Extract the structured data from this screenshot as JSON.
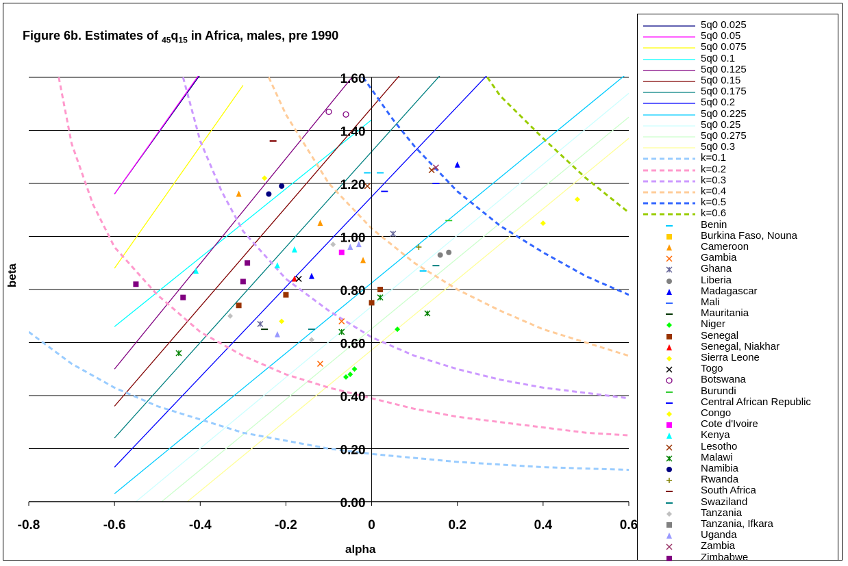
{
  "chart_data": {
    "type": "scatter",
    "title": "Figure 6b. Estimates of",
    "title_symbol": "q",
    "title_pre_sub": "45",
    "title_sub": "15",
    "title_rest": " in Africa, males, pre 1990",
    "xlabel": "alpha",
    "ylabel": "beta",
    "xlim": [
      -0.8,
      0.6
    ],
    "ylim": [
      0.0,
      1.6
    ],
    "xticks": [
      "-0.8",
      "-0.6",
      "-0.4",
      "-0.2",
      "0",
      "0.2",
      "0.4",
      "0.6"
    ],
    "yticks": [
      "0.00",
      "0.20",
      "0.40",
      "0.60",
      "0.80",
      "1.00",
      "1.20",
      "1.40",
      "1.60"
    ],
    "grid": "horizontal",
    "legend_position": "right",
    "iso_5q0_lines": [
      {
        "name": "5q0 0.025",
        "color": "#000080",
        "p1": [
          -0.6,
          1.16
        ],
        "p2": [
          -0.4,
          1.61
        ]
      },
      {
        "name": "5q0 0.05",
        "color": "#ff00ff",
        "p1": [
          -0.6,
          1.16
        ],
        "p2": [
          -0.35,
          1.73
        ]
      },
      {
        "name": "5q0 0.075",
        "color": "#ffff00",
        "p1": [
          -0.6,
          0.88
        ],
        "p2": [
          -0.3,
          1.57
        ]
      },
      {
        "name": "5q0 0.1",
        "color": "#00ffff",
        "p1": [
          -0.6,
          0.66
        ],
        "p2": [
          0.0,
          1.44
        ]
      },
      {
        "name": "5q0 0.125",
        "color": "#800080",
        "p1": [
          -0.6,
          0.5
        ],
        "p2": [
          0.06,
          1.81
        ]
      },
      {
        "name": "5q0 0.15",
        "color": "#800000",
        "p1": [
          -0.6,
          0.36
        ],
        "p2": [
          0.2,
          1.86
        ]
      },
      {
        "name": "5q0 0.175",
        "color": "#008080",
        "p1": [
          -0.6,
          0.24
        ],
        "p2": [
          0.35,
          1.95
        ]
      },
      {
        "name": "5q0 0.2",
        "color": "#0000ff",
        "p1": [
          -0.6,
          0.13
        ],
        "p2": [
          0.5,
          2.0
        ]
      },
      {
        "name": "5q0 0.225",
        "color": "#00ccff",
        "p1": [
          -0.6,
          0.03
        ],
        "p2": [
          0.6,
          1.62
        ]
      },
      {
        "name": "5q0 0.25",
        "color": "#ccffff",
        "p1": [
          -0.55,
          0.0
        ],
        "p2": [
          0.6,
          1.54
        ]
      },
      {
        "name": "5q0 0.275",
        "color": "#ccffcc",
        "p1": [
          -0.49,
          0.0
        ],
        "p2": [
          0.6,
          1.45
        ]
      },
      {
        "name": "5q0 0.3",
        "color": "#ffff99",
        "p1": [
          -0.43,
          0.0
        ],
        "p2": [
          0.6,
          1.37
        ]
      }
    ],
    "k_curves": [
      {
        "name": "k=0.1",
        "color": "#99ccff",
        "points": [
          [
            -0.8,
            0.64
          ],
          [
            -0.7,
            0.52
          ],
          [
            -0.6,
            0.43
          ],
          [
            -0.5,
            0.36
          ],
          [
            -0.4,
            0.31
          ],
          [
            -0.3,
            0.26
          ],
          [
            -0.2,
            0.23
          ],
          [
            -0.1,
            0.2
          ],
          [
            0.0,
            0.18
          ],
          [
            0.1,
            0.165
          ],
          [
            0.2,
            0.15
          ],
          [
            0.3,
            0.14
          ],
          [
            0.4,
            0.13
          ],
          [
            0.5,
            0.125
          ],
          [
            0.6,
            0.12
          ]
        ]
      },
      {
        "name": "k=0.2",
        "color": "#ff99cc",
        "points": [
          [
            -0.73,
            1.6
          ],
          [
            -0.7,
            1.35
          ],
          [
            -0.65,
            1.12
          ],
          [
            -0.6,
            0.96
          ],
          [
            -0.5,
            0.78
          ],
          [
            -0.4,
            0.64
          ],
          [
            -0.3,
            0.55
          ],
          [
            -0.2,
            0.48
          ],
          [
            -0.1,
            0.43
          ],
          [
            0.0,
            0.39
          ],
          [
            0.1,
            0.35
          ],
          [
            0.2,
            0.32
          ],
          [
            0.3,
            0.3
          ],
          [
            0.4,
            0.28
          ],
          [
            0.5,
            0.26
          ],
          [
            0.6,
            0.25
          ]
        ]
      },
      {
        "name": "k=0.3",
        "color": "#cc99ff",
        "points": [
          [
            -0.44,
            1.6
          ],
          [
            -0.4,
            1.36
          ],
          [
            -0.35,
            1.17
          ],
          [
            -0.3,
            1.02
          ],
          [
            -0.2,
            0.84
          ],
          [
            -0.1,
            0.72
          ],
          [
            0.0,
            0.62
          ],
          [
            0.1,
            0.55
          ],
          [
            0.2,
            0.5
          ],
          [
            0.3,
            0.46
          ],
          [
            0.4,
            0.43
          ],
          [
            0.5,
            0.41
          ],
          [
            0.6,
            0.39
          ]
        ]
      },
      {
        "name": "k=0.4",
        "color": "#ffcc99",
        "points": [
          [
            -0.24,
            1.6
          ],
          [
            -0.2,
            1.46
          ],
          [
            -0.1,
            1.2
          ],
          [
            0.0,
            1.03
          ],
          [
            0.1,
            0.9
          ],
          [
            0.2,
            0.8
          ],
          [
            0.3,
            0.72
          ],
          [
            0.4,
            0.65
          ],
          [
            0.5,
            0.6
          ],
          [
            0.6,
            0.55
          ]
        ]
      },
      {
        "name": "k=0.5",
        "color": "#3366ff",
        "points": [
          [
            -0.02,
            1.6
          ],
          [
            0.05,
            1.44
          ],
          [
            0.1,
            1.34
          ],
          [
            0.2,
            1.17
          ],
          [
            0.3,
            1.04
          ],
          [
            0.4,
            0.94
          ],
          [
            0.5,
            0.85
          ],
          [
            0.6,
            0.78
          ]
        ]
      },
      {
        "name": "k=0.6",
        "color": "#99cc00",
        "points": [
          [
            0.27,
            1.6
          ],
          [
            0.3,
            1.53
          ],
          [
            0.4,
            1.37
          ],
          [
            0.5,
            1.22
          ],
          [
            0.6,
            1.09
          ]
        ]
      }
    ],
    "series": [
      {
        "name": "Benin",
        "marker": "dash",
        "color": "#00ccff",
        "points": [
          [
            -0.01,
            1.24
          ],
          [
            0.02,
            1.24
          ],
          [
            0.12,
            0.87
          ]
        ]
      },
      {
        "name": "Burkina Faso, Nouna",
        "marker": "square",
        "color": "#ffcc00",
        "points": []
      },
      {
        "name": "Cameroon",
        "marker": "triangle",
        "color": "#ff9900",
        "points": [
          [
            -0.31,
            1.16
          ],
          [
            -0.12,
            1.05
          ],
          [
            -0.02,
            0.91
          ]
        ]
      },
      {
        "name": "Gambia",
        "marker": "x",
        "color": "#ff6600",
        "points": [
          [
            -0.12,
            0.52
          ],
          [
            -0.07,
            0.68
          ]
        ]
      },
      {
        "name": "Ghana",
        "marker": "star",
        "color": "#666699",
        "points": [
          [
            -0.26,
            0.67
          ],
          [
            0.05,
            1.01
          ]
        ]
      },
      {
        "name": "Liberia",
        "marker": "circle",
        "color": "#808080",
        "points": [
          [
            0.16,
            0.93
          ],
          [
            0.18,
            0.94
          ]
        ]
      },
      {
        "name": "Madagascar",
        "marker": "triangle",
        "color": "#0000ff",
        "points": [
          [
            -0.14,
            0.85
          ],
          [
            0.2,
            1.27
          ]
        ]
      },
      {
        "name": "Mali",
        "marker": "dash",
        "color": "#3366ff",
        "points": []
      },
      {
        "name": "Mauritania",
        "marker": "dash",
        "color": "#003300",
        "points": [
          [
            -0.25,
            0.65
          ]
        ]
      },
      {
        "name": "Niger",
        "marker": "diamond",
        "color": "#00ff00",
        "points": [
          [
            -0.05,
            0.48
          ],
          [
            -0.06,
            0.47
          ],
          [
            -0.04,
            0.5
          ],
          [
            0.06,
            0.65
          ]
        ]
      },
      {
        "name": "Senegal",
        "marker": "square",
        "color": "#993300",
        "points": [
          [
            -0.31,
            0.74
          ],
          [
            -0.2,
            0.78
          ],
          [
            0.02,
            0.8
          ],
          [
            0.0,
            0.75
          ]
        ]
      },
      {
        "name": "Senegal, Niakhar",
        "marker": "triangle",
        "color": "#ff0000",
        "points": [
          [
            -0.18,
            0.84
          ]
        ]
      },
      {
        "name": "Sierra Leone",
        "marker": "diamond",
        "color": "#ffff00",
        "points": [
          [
            -0.25,
            1.22
          ],
          [
            -0.21,
            0.68
          ],
          [
            0.4,
            1.05
          ],
          [
            0.48,
            1.14
          ]
        ]
      },
      {
        "name": "Togo",
        "marker": "x",
        "color": "#000000",
        "points": [
          [
            -0.17,
            0.84
          ]
        ]
      },
      {
        "name": "Botswana",
        "marker": "ocircle",
        "color": "#800080",
        "points": [
          [
            -0.1,
            1.47
          ],
          [
            -0.06,
            1.46
          ]
        ]
      },
      {
        "name": "Burundi",
        "marker": "dash",
        "color": "#33cc33",
        "points": [
          [
            0.18,
            1.06
          ]
        ]
      },
      {
        "name": "Central African Republic",
        "marker": "dash",
        "color": "#0000ff",
        "points": [
          [
            0.03,
            1.17
          ],
          [
            0.15,
            1.2
          ]
        ]
      },
      {
        "name": "Congo",
        "marker": "diamond",
        "color": "#ffff00",
        "points": []
      },
      {
        "name": "Cote d'Ivoire",
        "marker": "square",
        "color": "#ff00ff",
        "points": [
          [
            -0.07,
            0.94
          ]
        ]
      },
      {
        "name": "Kenya",
        "marker": "triangle",
        "color": "#00ffff",
        "points": [
          [
            -0.41,
            0.87
          ],
          [
            -0.22,
            0.89
          ],
          [
            -0.18,
            0.95
          ]
        ]
      },
      {
        "name": "Lesotho",
        "marker": "x",
        "color": "#993300",
        "points": [
          [
            -0.01,
            1.19
          ],
          [
            0.14,
            1.25
          ]
        ]
      },
      {
        "name": "Malawi",
        "marker": "star",
        "color": "#008000",
        "points": [
          [
            -0.45,
            0.56
          ],
          [
            -0.07,
            0.64
          ],
          [
            0.02,
            0.77
          ],
          [
            0.13,
            0.71
          ]
        ]
      },
      {
        "name": "Namibia",
        "marker": "circle",
        "color": "#000080",
        "points": [
          [
            -0.24,
            1.16
          ],
          [
            -0.21,
            1.19
          ]
        ]
      },
      {
        "name": "Rwanda",
        "marker": "plus",
        "color": "#808000",
        "points": [
          [
            0.11,
            0.96
          ]
        ]
      },
      {
        "name": "South Africa",
        "marker": "dash",
        "color": "#800000",
        "points": [
          [
            -0.23,
            1.36
          ]
        ]
      },
      {
        "name": "Swaziland",
        "marker": "dash",
        "color": "#008080",
        "points": [
          [
            -0.14,
            0.65
          ],
          [
            0.15,
            0.89
          ]
        ]
      },
      {
        "name": "Tanzania",
        "marker": "diamond",
        "color": "#c0c0c0",
        "points": [
          [
            -0.33,
            0.7
          ],
          [
            -0.14,
            0.61
          ],
          [
            -0.09,
            0.97
          ]
        ]
      },
      {
        "name": "Tanzania, Ifkara",
        "marker": "square",
        "color": "#808080",
        "points": []
      },
      {
        "name": "Uganda",
        "marker": "triangle",
        "color": "#9999ff",
        "points": [
          [
            -0.22,
            0.63
          ],
          [
            -0.03,
            0.97
          ],
          [
            -0.05,
            0.96
          ]
        ]
      },
      {
        "name": "Zambia",
        "marker": "x",
        "color": "#993366",
        "points": [
          [
            0.15,
            1.26
          ]
        ]
      },
      {
        "name": "Zimbabwe",
        "marker": "square",
        "color": "#800080",
        "points": [
          [
            -0.55,
            0.82
          ],
          [
            -0.44,
            0.77
          ],
          [
            -0.3,
            0.83
          ],
          [
            -0.29,
            0.9
          ]
        ]
      }
    ]
  }
}
